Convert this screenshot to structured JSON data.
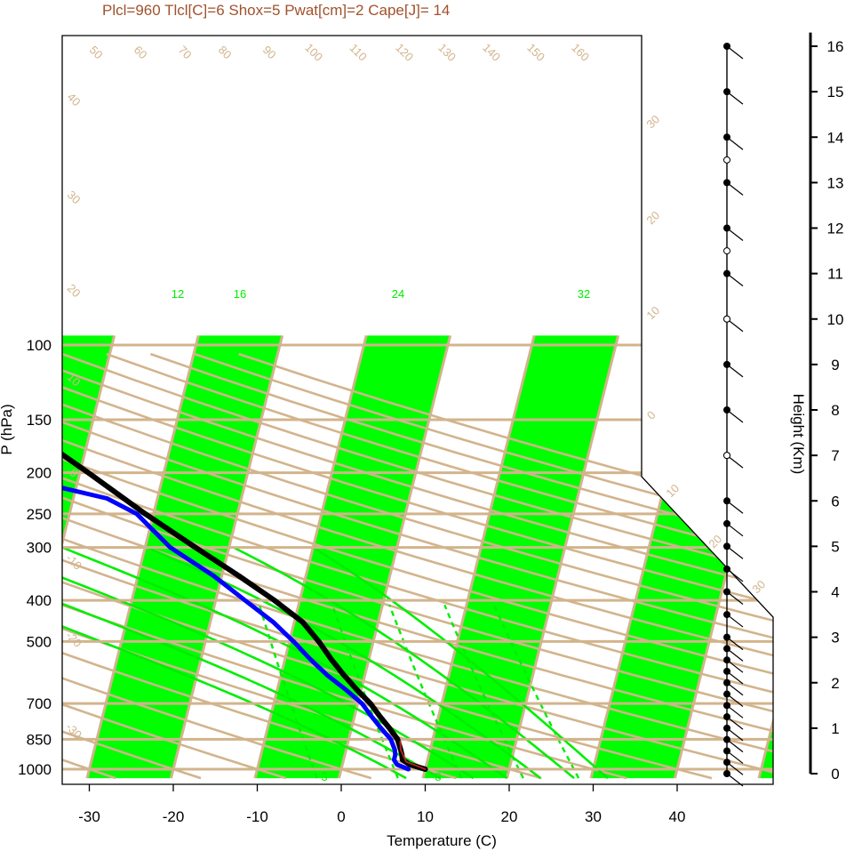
{
  "chart_data": {
    "type": "skew-t",
    "title": "Plcl=960 Tlcl[C]=6 Shox=5 Pwat[cm]=2 Cape[J]= 14",
    "xlabel": "Temperature (C)",
    "ylabel": "P (hPa)",
    "height_label": "Height (Km)",
    "pressure_ticks": [
      100,
      150,
      200,
      250,
      300,
      400,
      500,
      700,
      850,
      1000
    ],
    "temperature_ticks": [
      -30,
      -20,
      -10,
      0,
      10,
      20,
      30,
      40
    ],
    "height_ticks": [
      0,
      1,
      2,
      3,
      4,
      5,
      6,
      7,
      8,
      9,
      10,
      11,
      12,
      13,
      14,
      15,
      16
    ],
    "isotherm_labels_top": [
      "50",
      "60",
      "70",
      "80",
      "90",
      "100",
      "110",
      "120",
      "130",
      "140",
      "150",
      "160"
    ],
    "isotherm_labels_left": [
      "40",
      "30",
      "20",
      "10",
      "0",
      "-10",
      "-20",
      "-30"
    ],
    "isotherm_labels_right": [
      "30",
      "20",
      "10",
      "0",
      "10",
      "20",
      "30"
    ],
    "mixing_ratio_labels": [
      "12",
      "16",
      "24",
      "32"
    ],
    "moist_adiabat_labels": [
      "3",
      "8"
    ],
    "series": [
      {
        "name": "",
        "role": "temperature",
        "color": "#000000",
        "points": [
          [
            1000,
            10
          ],
          [
            975,
            8
          ],
          [
            950,
            7
          ],
          [
            925,
            6.8
          ],
          [
            900,
            6.5
          ],
          [
            850,
            5.8
          ],
          [
            800,
            4.5
          ],
          [
            750,
            3
          ],
          [
            700,
            1.5
          ],
          [
            650,
            -0.5
          ],
          [
            600,
            -2.5
          ],
          [
            550,
            -4.5
          ],
          [
            500,
            -6.5
          ],
          [
            450,
            -9
          ],
          [
            400,
            -13
          ],
          [
            350,
            -18
          ],
          [
            300,
            -24
          ],
          [
            250,
            -31
          ],
          [
            200,
            -39
          ],
          [
            170,
            -45
          ],
          [
            150,
            -52
          ],
          [
            125,
            -62
          ],
          [
            110,
            -68
          ]
        ]
      },
      {
        "name": "",
        "role": "dewpoint",
        "color": "#0000ff",
        "points": [
          [
            1000,
            8
          ],
          [
            975,
            6.5
          ],
          [
            950,
            6
          ],
          [
            925,
            6
          ],
          [
            900,
            5.8
          ],
          [
            850,
            5
          ],
          [
            800,
            3.5
          ],
          [
            750,
            2
          ],
          [
            700,
            0.5
          ],
          [
            650,
            -1.8
          ],
          [
            600,
            -4.5
          ],
          [
            550,
            -7
          ],
          [
            500,
            -9.5
          ],
          [
            450,
            -12.5
          ],
          [
            400,
            -16.5
          ],
          [
            350,
            -21
          ],
          [
            300,
            -27
          ],
          [
            250,
            -32
          ],
          [
            230,
            -36
          ],
          [
            210,
            -45
          ],
          [
            200,
            -60
          ],
          [
            110,
            -75
          ]
        ]
      },
      {
        "name": "",
        "role": "parcel",
        "color": "#b22222",
        "points": [
          [
            1000,
            10
          ],
          [
            960,
            7.5
          ],
          [
            900,
            6.5
          ],
          [
            860,
            6.2
          ]
        ]
      }
    ],
    "wind_dot_heights_km": [
      0,
      0.25,
      0.5,
      0.75,
      1,
      1.25,
      1.5,
      1.75,
      2,
      2.25,
      2.5,
      2.75,
      3,
      3.5,
      4,
      4.5,
      5,
      5.5,
      6,
      7,
      8,
      9,
      10,
      11,
      12,
      13,
      14,
      15,
      16
    ],
    "wind_open_heights_km": [
      7,
      10,
      11.5,
      13.5
    ],
    "grid": true,
    "colors": {
      "band": "#00ff00",
      "isotherm": "#d2b48c",
      "title": "#a0522d",
      "mixing": "#00ee00"
    }
  }
}
